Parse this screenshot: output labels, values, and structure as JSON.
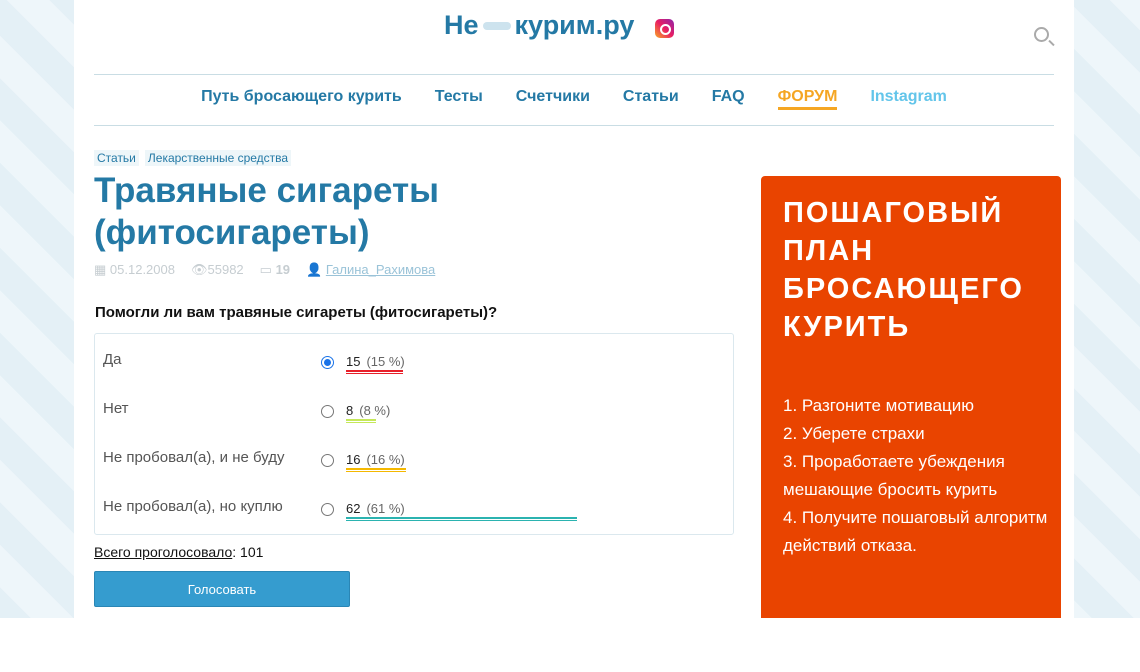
{
  "header": {
    "logo_text_left": "Не",
    "logo_text_right": "курим.ру"
  },
  "nav": [
    "Путь бросающего курить",
    "Тесты",
    "Счетчики",
    "Статьи",
    "FAQ",
    "ФОРУМ",
    "Instagram"
  ],
  "tags": [
    "Статьи",
    "Лекарственные средства"
  ],
  "article": {
    "title": "Травяные сигареты (фитосигареты)",
    "date": "05.12.2008",
    "views": "55982",
    "comments": "19",
    "author": "Галина_Рахимова"
  },
  "poll": {
    "question": "Помогли ли вам травяные сигареты (фитосигареты)?",
    "options": [
      {
        "label": "Да",
        "votes": "15",
        "pct": "(15 %)",
        "percent": 15,
        "color": "#e8202a",
        "selected": true
      },
      {
        "label": "Нет",
        "votes": "8",
        "pct": "(8 %)",
        "percent": 8,
        "color": "#c5e85a",
        "selected": false
      },
      {
        "label": "Не пробовал(а), и не буду",
        "votes": "16",
        "pct": "(16 %)",
        "percent": 16,
        "color": "#f5b800",
        "selected": false
      },
      {
        "label": "Не пробовал(а), но куплю",
        "votes": "62",
        "pct": "(61 %)",
        "percent": 61,
        "color": "#2bb3b0",
        "selected": false
      }
    ],
    "total_label": "Всего проголосовало",
    "total": ": 101",
    "vote_button": "Голосовать"
  },
  "promo": {
    "title": "ПОШАГОВЫЙ ПЛАН БРОСАЮЩЕГО КУРИТЬ",
    "steps": [
      "1. Разгоните мотивацию",
      "2. Уберете страхи",
      "3. Проработаете убеждения мешающие бросить курить",
      "4. Получите пошаговый алгоритм действий отказа."
    ]
  }
}
